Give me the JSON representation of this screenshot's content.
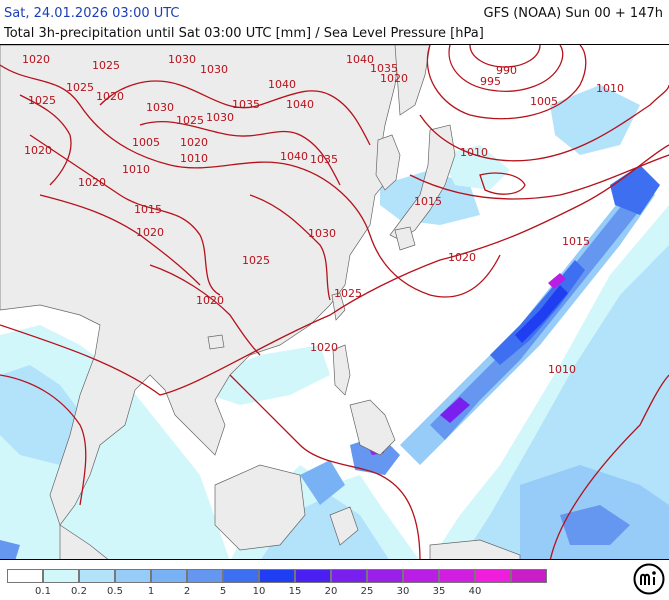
{
  "header": {
    "title_left": "Sat, 24.01.2026 03:00 UTC",
    "title_right": "GFS (NOAA) Sun 00 + 147h",
    "subtitle": "Total 3h-precipitation until Sat 03:00 UTC [mm] / Sea Level Pressure [hPa]"
  },
  "colors": {
    "isobar": "#b5121b",
    "land": "#ececec",
    "sea": "#ffffff",
    "title_left": "#1a3fb5"
  },
  "legend": {
    "colors": [
      "#ffffff",
      "#d2f7fb",
      "#b2e3fa",
      "#97cbf8",
      "#78b2f5",
      "#6697f0",
      "#3d6ff0",
      "#1f3ef2",
      "#4a1ff2",
      "#7a20ee",
      "#9a20e8",
      "#b81ee4",
      "#d21ee0",
      "#ee1edc",
      "#c81ec8"
    ],
    "ticks": [
      "0.1",
      "0.2",
      "0.5",
      "1",
      "2",
      "5",
      "10",
      "15",
      "20",
      "25",
      "30",
      "35",
      "40"
    ]
  },
  "isobar_labels": [
    {
      "text": "1020"
    },
    {
      "text": "1025"
    },
    {
      "text": "1030"
    },
    {
      "text": "1030"
    },
    {
      "text": "1040"
    },
    {
      "text": "1035"
    },
    {
      "text": "1020"
    },
    {
      "text": "990"
    },
    {
      "text": "995"
    },
    {
      "text": "1010"
    },
    {
      "text": "1025"
    },
    {
      "text": "1025"
    },
    {
      "text": "1020"
    },
    {
      "text": "1030"
    },
    {
      "text": "1040"
    },
    {
      "text": "1035"
    },
    {
      "text": "1040"
    },
    {
      "text": "1005"
    },
    {
      "text": "1005"
    },
    {
      "text": "1025"
    },
    {
      "text": "1030"
    },
    {
      "text": "1020"
    },
    {
      "text": "1020"
    },
    {
      "text": "1010"
    },
    {
      "text": "1035"
    },
    {
      "text": "1040"
    },
    {
      "text": "1010"
    },
    {
      "text": "1020"
    },
    {
      "text": "1010"
    },
    {
      "text": "1015"
    },
    {
      "text": "1015"
    },
    {
      "text": "1015"
    },
    {
      "text": "1020"
    },
    {
      "text": "1030"
    },
    {
      "text": "1020"
    },
    {
      "text": "1025"
    },
    {
      "text": "1025"
    },
    {
      "text": "1020"
    },
    {
      "text": "1020"
    },
    {
      "text": "1010"
    }
  ],
  "logo": {
    "icon": "meteologix-logo"
  }
}
